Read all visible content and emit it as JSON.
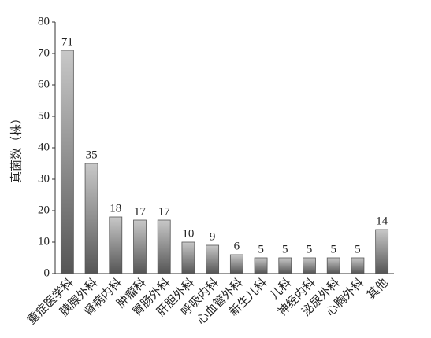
{
  "chart_data": {
    "type": "bar",
    "y_label": "真菌数（株）",
    "categories": [
      "重症医学科",
      "胰腺外科",
      "肾病内科",
      "肿瘤科",
      "胃肠外科",
      "肝胆外科",
      "呼吸内科",
      "心血管外科",
      "新生儿科",
      "儿科",
      "神经内科",
      "泌尿外科",
      "心胸外科",
      "其他"
    ],
    "values": [
      71,
      35,
      18,
      17,
      17,
      10,
      9,
      6,
      5,
      5,
      5,
      5,
      5,
      14
    ],
    "ylim": [
      0,
      80
    ],
    "yticks": [
      0,
      10,
      20,
      30,
      40,
      50,
      60,
      70,
      80
    ]
  }
}
